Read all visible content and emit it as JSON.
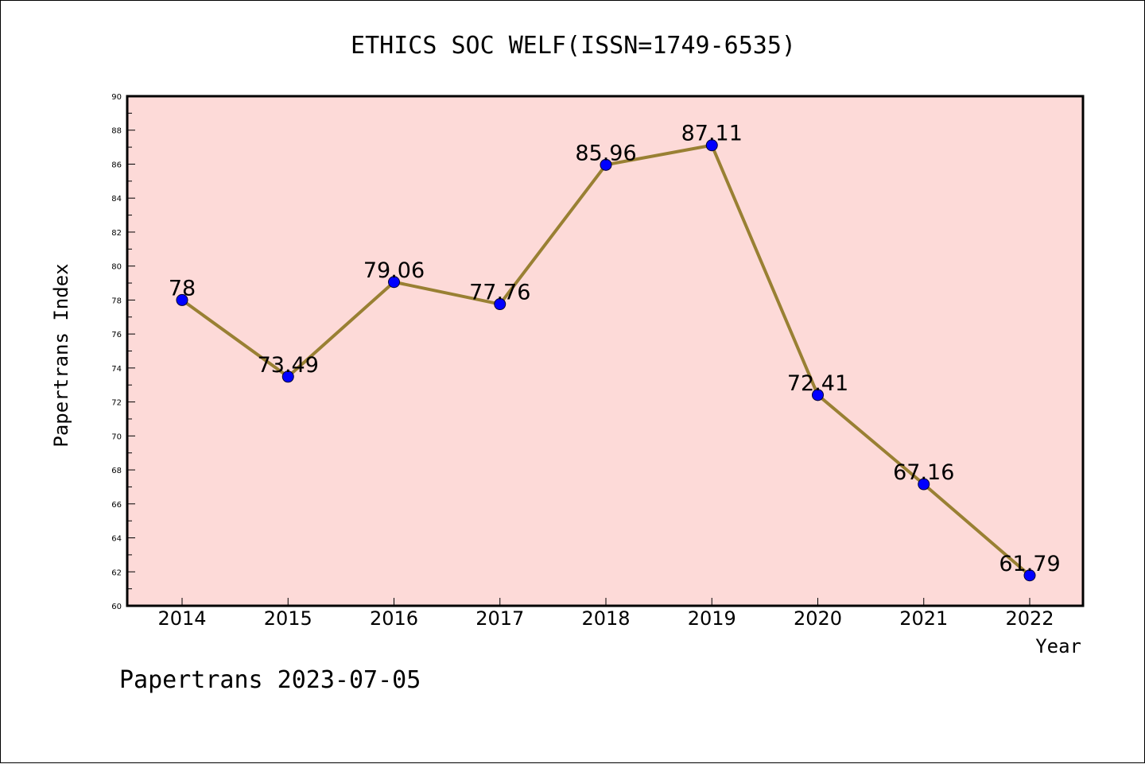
{
  "chart_data": {
    "type": "line",
    "title": "ETHICS SOC WELF(ISSN=1749-6535)",
    "xlabel": "Year",
    "ylabel": "Papertrans Index",
    "categories": [
      "2014",
      "2015",
      "2016",
      "2017",
      "2018",
      "2019",
      "2020",
      "2021",
      "2022"
    ],
    "series": [
      {
        "values": [
          78,
          73.49,
          79.06,
          77.76,
          85.96,
          87.11,
          72.41,
          67.16,
          61.79
        ],
        "labels": [
          "78",
          "73.49",
          "79.06",
          "77.76",
          "85.96",
          "87.11",
          "72.41",
          "67.16",
          "61.79"
        ]
      }
    ],
    "ylim": [
      60,
      90
    ],
    "yticks": [
      "60",
      "62",
      "64",
      "66",
      "68",
      "70",
      "72",
      "74",
      "76",
      "78",
      "80",
      "82",
      "84",
      "86",
      "88",
      "90"
    ],
    "grid": false,
    "legend": "none",
    "colors": {
      "plot_background": "#fddad8",
      "line": "#998033",
      "marker": "#0000ff"
    }
  },
  "footer": "Papertrans 2023-07-05"
}
